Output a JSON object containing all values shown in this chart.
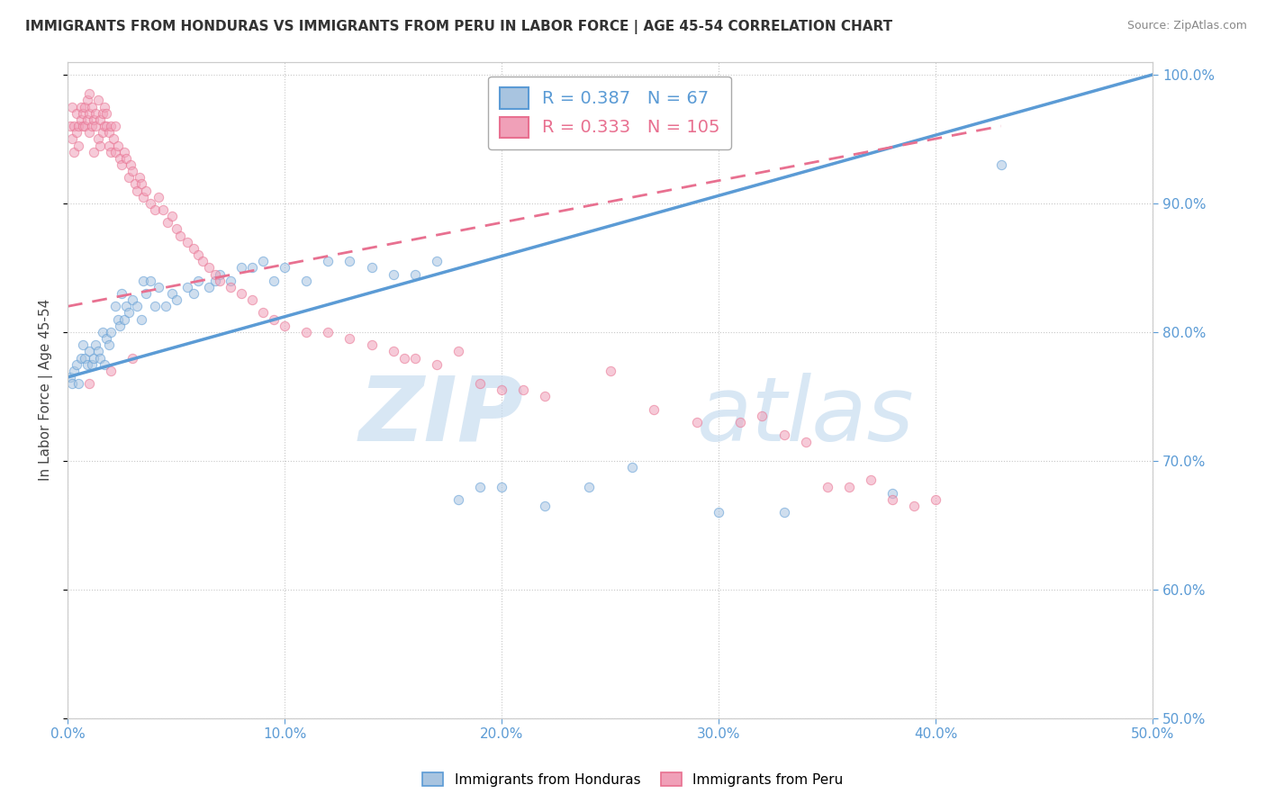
{
  "title": "IMMIGRANTS FROM HONDURAS VS IMMIGRANTS FROM PERU IN LABOR FORCE | AGE 45-54 CORRELATION CHART",
  "source": "Source: ZipAtlas.com",
  "ylabel": "In Labor Force | Age 45-54",
  "legend_honduras": {
    "label": "Immigrants from Honduras",
    "R": "0.387",
    "N": "67",
    "color": "#a8c4e0"
  },
  "legend_peru": {
    "label": "Immigrants from Peru",
    "R": "0.333",
    "N": "105",
    "color": "#f0a0b8"
  },
  "xmin": 0.0,
  "xmax": 0.5,
  "ymin": 0.5,
  "ymax": 1.01,
  "honduras_scatter": [
    [
      0.001,
      0.765
    ],
    [
      0.002,
      0.76
    ],
    [
      0.003,
      0.77
    ],
    [
      0.004,
      0.775
    ],
    [
      0.005,
      0.76
    ],
    [
      0.006,
      0.78
    ],
    [
      0.007,
      0.79
    ],
    [
      0.008,
      0.78
    ],
    [
      0.009,
      0.775
    ],
    [
      0.01,
      0.785
    ],
    [
      0.011,
      0.775
    ],
    [
      0.012,
      0.78
    ],
    [
      0.013,
      0.79
    ],
    [
      0.014,
      0.785
    ],
    [
      0.015,
      0.78
    ],
    [
      0.016,
      0.8
    ],
    [
      0.017,
      0.775
    ],
    [
      0.018,
      0.795
    ],
    [
      0.019,
      0.79
    ],
    [
      0.02,
      0.8
    ],
    [
      0.022,
      0.82
    ],
    [
      0.023,
      0.81
    ],
    [
      0.024,
      0.805
    ],
    [
      0.025,
      0.83
    ],
    [
      0.026,
      0.81
    ],
    [
      0.027,
      0.82
    ],
    [
      0.028,
      0.815
    ],
    [
      0.03,
      0.825
    ],
    [
      0.032,
      0.82
    ],
    [
      0.034,
      0.81
    ],
    [
      0.035,
      0.84
    ],
    [
      0.036,
      0.83
    ],
    [
      0.038,
      0.84
    ],
    [
      0.04,
      0.82
    ],
    [
      0.042,
      0.835
    ],
    [
      0.045,
      0.82
    ],
    [
      0.048,
      0.83
    ],
    [
      0.05,
      0.825
    ],
    [
      0.055,
      0.835
    ],
    [
      0.058,
      0.83
    ],
    [
      0.06,
      0.84
    ],
    [
      0.065,
      0.835
    ],
    [
      0.068,
      0.84
    ],
    [
      0.07,
      0.845
    ],
    [
      0.075,
      0.84
    ],
    [
      0.08,
      0.85
    ],
    [
      0.085,
      0.85
    ],
    [
      0.09,
      0.855
    ],
    [
      0.095,
      0.84
    ],
    [
      0.1,
      0.85
    ],
    [
      0.11,
      0.84
    ],
    [
      0.12,
      0.855
    ],
    [
      0.13,
      0.855
    ],
    [
      0.14,
      0.85
    ],
    [
      0.15,
      0.845
    ],
    [
      0.16,
      0.845
    ],
    [
      0.17,
      0.855
    ],
    [
      0.18,
      0.67
    ],
    [
      0.19,
      0.68
    ],
    [
      0.2,
      0.68
    ],
    [
      0.22,
      0.665
    ],
    [
      0.24,
      0.68
    ],
    [
      0.26,
      0.695
    ],
    [
      0.3,
      0.66
    ],
    [
      0.33,
      0.66
    ],
    [
      0.38,
      0.675
    ],
    [
      0.43,
      0.93
    ]
  ],
  "peru_scatter": [
    [
      0.001,
      0.96
    ],
    [
      0.002,
      0.975
    ],
    [
      0.002,
      0.95
    ],
    [
      0.003,
      0.96
    ],
    [
      0.003,
      0.94
    ],
    [
      0.004,
      0.955
    ],
    [
      0.004,
      0.97
    ],
    [
      0.005,
      0.96
    ],
    [
      0.005,
      0.945
    ],
    [
      0.006,
      0.965
    ],
    [
      0.006,
      0.975
    ],
    [
      0.007,
      0.96
    ],
    [
      0.007,
      0.97
    ],
    [
      0.008,
      0.96
    ],
    [
      0.008,
      0.975
    ],
    [
      0.009,
      0.965
    ],
    [
      0.009,
      0.98
    ],
    [
      0.01,
      0.97
    ],
    [
      0.01,
      0.955
    ],
    [
      0.01,
      0.985
    ],
    [
      0.011,
      0.96
    ],
    [
      0.011,
      0.975
    ],
    [
      0.012,
      0.965
    ],
    [
      0.012,
      0.94
    ],
    [
      0.013,
      0.97
    ],
    [
      0.013,
      0.96
    ],
    [
      0.014,
      0.98
    ],
    [
      0.014,
      0.95
    ],
    [
      0.015,
      0.965
    ],
    [
      0.015,
      0.945
    ],
    [
      0.016,
      0.97
    ],
    [
      0.016,
      0.955
    ],
    [
      0.017,
      0.96
    ],
    [
      0.017,
      0.975
    ],
    [
      0.018,
      0.96
    ],
    [
      0.018,
      0.97
    ],
    [
      0.019,
      0.955
    ],
    [
      0.019,
      0.945
    ],
    [
      0.02,
      0.94
    ],
    [
      0.02,
      0.96
    ],
    [
      0.021,
      0.95
    ],
    [
      0.022,
      0.94
    ],
    [
      0.022,
      0.96
    ],
    [
      0.023,
      0.945
    ],
    [
      0.024,
      0.935
    ],
    [
      0.025,
      0.93
    ],
    [
      0.026,
      0.94
    ],
    [
      0.027,
      0.935
    ],
    [
      0.028,
      0.92
    ],
    [
      0.029,
      0.93
    ],
    [
      0.03,
      0.925
    ],
    [
      0.031,
      0.915
    ],
    [
      0.032,
      0.91
    ],
    [
      0.033,
      0.92
    ],
    [
      0.034,
      0.915
    ],
    [
      0.035,
      0.905
    ],
    [
      0.036,
      0.91
    ],
    [
      0.038,
      0.9
    ],
    [
      0.04,
      0.895
    ],
    [
      0.042,
      0.905
    ],
    [
      0.044,
      0.895
    ],
    [
      0.046,
      0.885
    ],
    [
      0.048,
      0.89
    ],
    [
      0.05,
      0.88
    ],
    [
      0.052,
      0.875
    ],
    [
      0.055,
      0.87
    ],
    [
      0.058,
      0.865
    ],
    [
      0.06,
      0.86
    ],
    [
      0.062,
      0.855
    ],
    [
      0.065,
      0.85
    ],
    [
      0.068,
      0.845
    ],
    [
      0.07,
      0.84
    ],
    [
      0.075,
      0.835
    ],
    [
      0.08,
      0.83
    ],
    [
      0.085,
      0.825
    ],
    [
      0.09,
      0.815
    ],
    [
      0.095,
      0.81
    ],
    [
      0.1,
      0.805
    ],
    [
      0.11,
      0.8
    ],
    [
      0.12,
      0.8
    ],
    [
      0.13,
      0.795
    ],
    [
      0.14,
      0.79
    ],
    [
      0.15,
      0.785
    ],
    [
      0.155,
      0.78
    ],
    [
      0.16,
      0.78
    ],
    [
      0.17,
      0.775
    ],
    [
      0.18,
      0.785
    ],
    [
      0.19,
      0.76
    ],
    [
      0.2,
      0.755
    ],
    [
      0.21,
      0.755
    ],
    [
      0.22,
      0.75
    ],
    [
      0.25,
      0.77
    ],
    [
      0.27,
      0.74
    ],
    [
      0.29,
      0.73
    ],
    [
      0.31,
      0.73
    ],
    [
      0.32,
      0.735
    ],
    [
      0.33,
      0.72
    ],
    [
      0.34,
      0.715
    ],
    [
      0.35,
      0.68
    ],
    [
      0.36,
      0.68
    ],
    [
      0.37,
      0.685
    ],
    [
      0.38,
      0.67
    ],
    [
      0.39,
      0.665
    ],
    [
      0.4,
      0.67
    ],
    [
      0.01,
      0.76
    ],
    [
      0.02,
      0.77
    ],
    [
      0.03,
      0.78
    ]
  ],
  "honduras_line": [
    [
      0.0,
      0.765
    ],
    [
      0.5,
      1.0
    ]
  ],
  "peru_line": [
    [
      0.0,
      0.82
    ],
    [
      0.43,
      0.96
    ]
  ],
  "background_color": "#ffffff",
  "scatter_alpha": 0.55,
  "scatter_size": 55,
  "grid_color": "#c8c8c8",
  "line_honduras_color": "#5b9bd5",
  "line_peru_color": "#e87090",
  "dot_honduras_color": "#a8c4e0",
  "dot_peru_color": "#f0a0b8"
}
